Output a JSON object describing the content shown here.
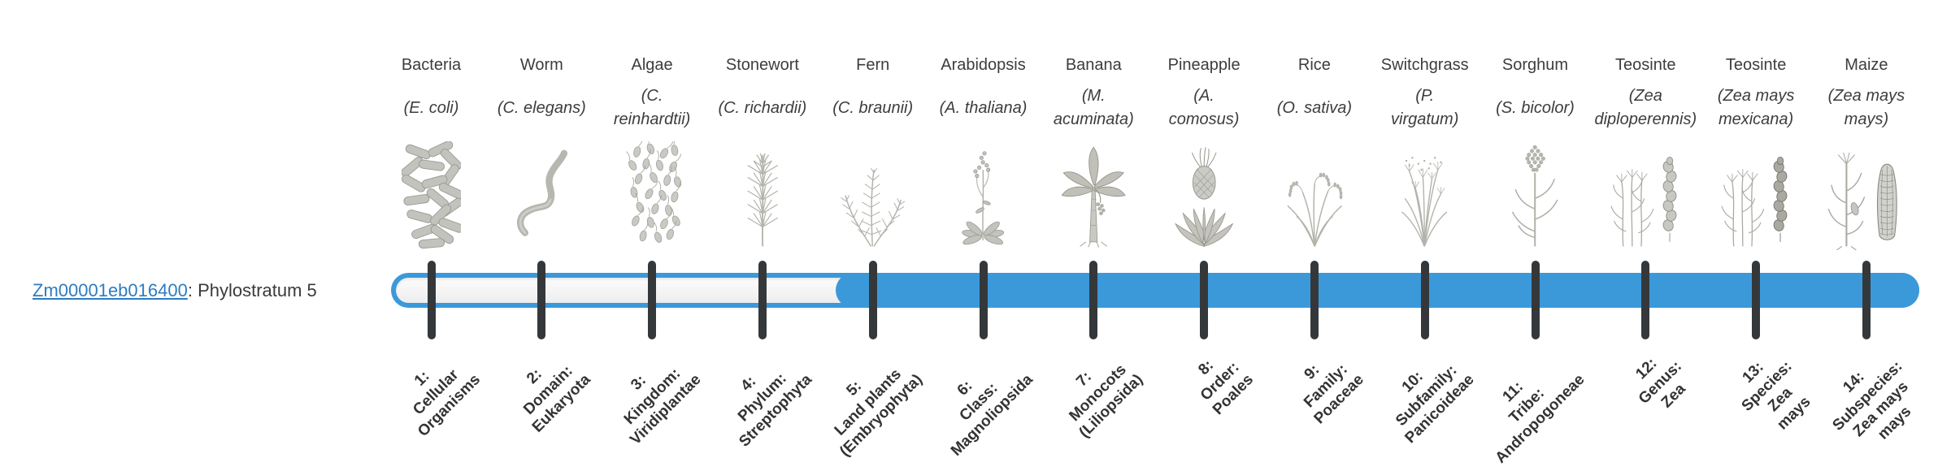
{
  "gene": {
    "id": "Zm00001eb016400",
    "separator": ": ",
    "phylostratum_label": "Phylostratum 5"
  },
  "bar": {
    "total_strata": 14,
    "filled_from_stratum": 5
  },
  "colors": {
    "bar_blue": "#3b99da",
    "track_white": "#f7f7f7",
    "tick_dark": "#35383b",
    "link_blue": "#2d7cc1",
    "text_dark": "#3a3a3a",
    "icon_gray": "#b3b3ab"
  },
  "strata": [
    {
      "num": 1,
      "organism": "Bacteria",
      "species": "(E. coli)",
      "icon": "bacteria-icon",
      "rank": "1:\nCellular\nOrganisms"
    },
    {
      "num": 2,
      "organism": "Worm",
      "species": "(C. elegans)",
      "icon": "worm-icon",
      "rank": "2:\nDomain:\nEukaryota"
    },
    {
      "num": 3,
      "organism": "Algae",
      "species": "(C.\nreinhardtii)",
      "icon": "algae-icon",
      "rank": "3:\nKingdom:\nViridiplantae"
    },
    {
      "num": 4,
      "organism": "Stonewort",
      "species": "(C. richardii)",
      "icon": "stonewort-icon",
      "rank": "4:\nPhylum:\nStreptophyta"
    },
    {
      "num": 5,
      "organism": "Fern",
      "species": "(C. braunii)",
      "icon": "fern-icon",
      "rank": "5:\nLand plants\n(Embryophyta)"
    },
    {
      "num": 6,
      "organism": "Arabidopsis",
      "species": "(A. thaliana)",
      "icon": "arabidopsis-icon",
      "rank": "6:\nClass:\nMagnoliopsida"
    },
    {
      "num": 7,
      "organism": "Banana",
      "species": "(M.\nacuminata)",
      "icon": "banana-icon",
      "rank": "7:\nMonocots\n(Liliopsida)"
    },
    {
      "num": 8,
      "organism": "Pineapple",
      "species": "(A.\ncomosus)",
      "icon": "pineapple-icon",
      "rank": "8:\nOrder:\nPoales"
    },
    {
      "num": 9,
      "organism": "Rice",
      "species": "(O. sativa)",
      "icon": "rice-icon",
      "rank": "9:\nFamily:\nPoaceae"
    },
    {
      "num": 10,
      "organism": "Switchgrass",
      "species": "(P.\nvirgatum)",
      "icon": "switchgrass-icon",
      "rank": "10:\nSubfamily:\nPanicoideae"
    },
    {
      "num": 11,
      "organism": "Sorghum",
      "species": "(S. bicolor)",
      "icon": "sorghum-icon",
      "rank": "11:\nTribe:\nAndropogoneae"
    },
    {
      "num": 12,
      "organism": "Teosinte",
      "species": "(Zea\ndiploperennis)",
      "icon": "teosinte-icon",
      "rank": "12:\nGenus:\nZea"
    },
    {
      "num": 13,
      "organism": "Teosinte",
      "species": "(Zea mays\nmexicana)",
      "icon": "teosinte2-icon",
      "rank": "13:\nSpecies:\nZea\nmays"
    },
    {
      "num": 14,
      "organism": "Maize",
      "species": "(Zea mays\nmays)",
      "icon": "maize-icon",
      "rank": "14:\nSubspecies:\nZea mays\nmays"
    }
  ]
}
